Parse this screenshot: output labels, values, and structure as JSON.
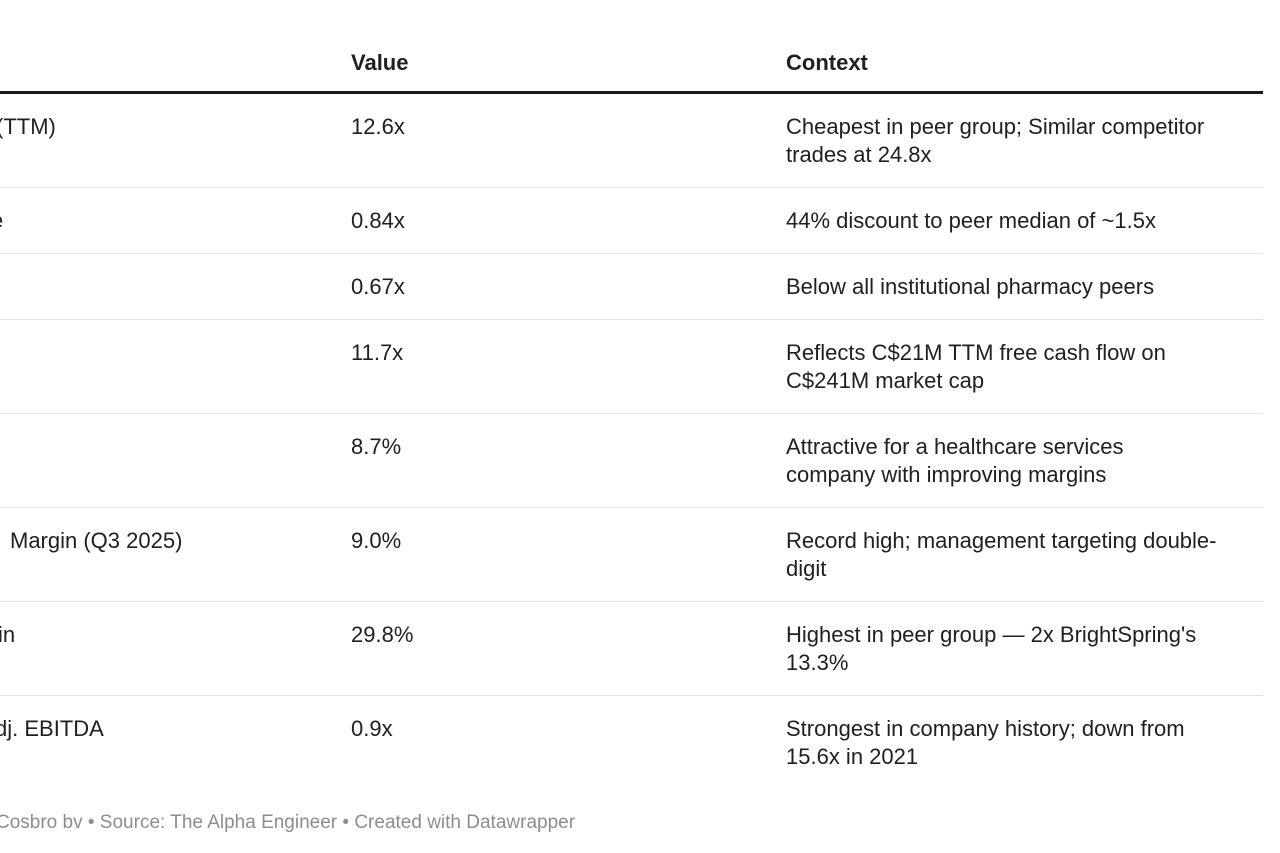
{
  "chart_data": {
    "type": "table",
    "columns": [
      "",
      "Value",
      "Context"
    ],
    "rows": [
      [
        "(TTM)",
        "12.6x",
        "Cheapest in peer group; Similar competitor trades at 24.8x"
      ],
      [
        "e",
        "0.84x",
        "44% discount to peer median of ~1.5x"
      ],
      [
        "",
        "0.67x",
        "Below all institutional pharmacy peers"
      ],
      [
        "",
        "11.7x",
        "Reflects C$21M TTM free cash flow on C$241M market cap"
      ],
      [
        "",
        "8.7%",
        "Attractive for a healthcare services company with improving margins"
      ],
      [
        "Margin (Q3 2025)",
        "9.0%",
        "Record high; management targeting double-digit"
      ],
      [
        "in",
        "29.8%",
        "Highest in peer group — 2x BrightSpring's 13.3%"
      ],
      [
        "dj. EBITDA",
        "0.9x",
        "Strongest in company history; down from 15.6x in 2021"
      ]
    ]
  },
  "table": {
    "header": {
      "metric": "",
      "value": "Value",
      "context": "Context"
    },
    "rows": [
      {
        "metric_fragment": "(TTM)",
        "value": "12.6x",
        "context_lines": [
          "Cheapest in peer group; Similar competitor",
          "trades at 24.8x"
        ]
      },
      {
        "metric_fragment": "e",
        "value": "0.84x",
        "context_lines": [
          "44% discount to peer median of ~1.5x"
        ]
      },
      {
        "metric_fragment": "",
        "value": "0.67x",
        "context_lines": [
          "Below all institutional pharmacy peers"
        ]
      },
      {
        "metric_fragment": "",
        "value": "11.7x",
        "context_lines": [
          "Reflects C$21M TTM free cash flow on",
          "C$241M market cap"
        ]
      },
      {
        "metric_fragment": "",
        "value": "8.7%",
        "context_lines": [
          "Attractive for a healthcare services",
          "company with improving margins"
        ]
      },
      {
        "metric_fragment": "Margin (Q3 2025)",
        "value": "9.0%",
        "context_lines": [
          "Record high; management targeting double-",
          "digit"
        ]
      },
      {
        "metric_fragment": "in",
        "value": "29.8%",
        "context_lines": [
          "Highest in peer group — 2x BrightSpring's",
          "13.3%"
        ]
      },
      {
        "metric_fragment": "dj. EBITDA",
        "value": "0.9x",
        "context_lines": [
          "Strongest in company history; down from",
          "15.6x in 2021"
        ]
      }
    ]
  },
  "footer": {
    "text": "Cosbro bv  • Source: The Alpha Engineer • Created with Datawrapper"
  },
  "colors": {
    "header_border": "#1a1a1a",
    "row_border": "#e4e4e4",
    "text": "#202020",
    "footer_text": "#8d8d8d",
    "background": "#ffffff"
  }
}
